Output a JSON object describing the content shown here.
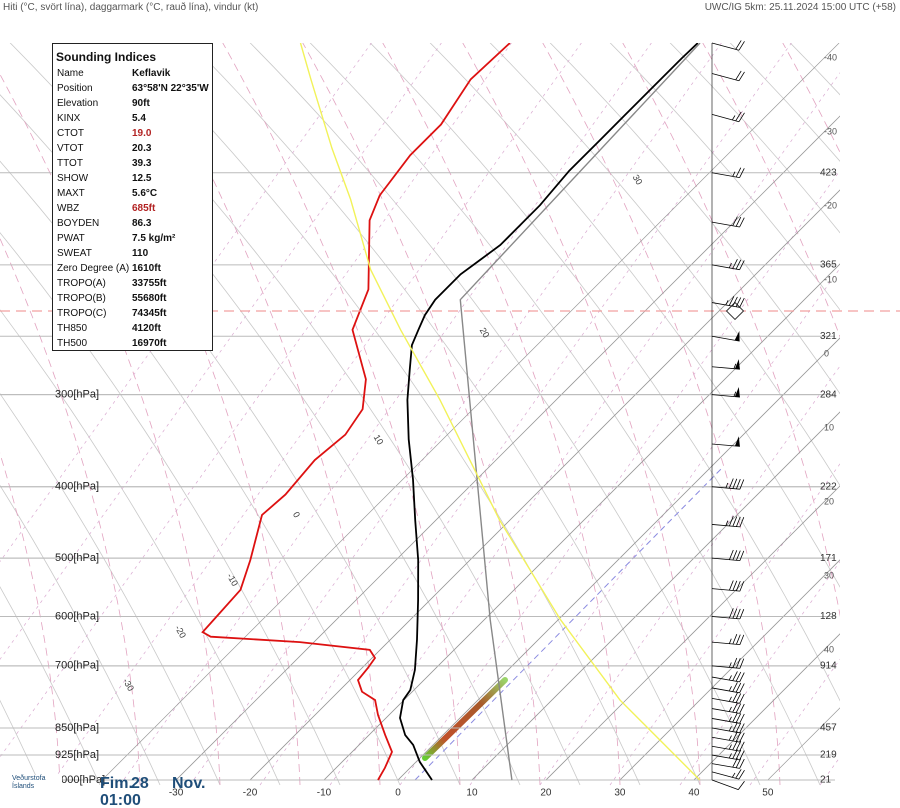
{
  "header": {
    "left": "Hiti (°C, svört lína), daggarmark (°C, rauð lína), vindur (kt)",
    "right": "UWC/IG 5km: 25.11.2024 15:00 UTC (+58)"
  },
  "indices": {
    "title": "Sounding Indices",
    "rows": [
      {
        "name": "Name",
        "value": "Keflavik"
      },
      {
        "name": "Position",
        "value": "63°58'N 22°35'W"
      },
      {
        "name": "Elevation",
        "value": "90ft"
      },
      {
        "name": "KINX",
        "value": "5.4"
      },
      {
        "name": "CTOT",
        "value": "19.0",
        "color": "#b22222"
      },
      {
        "name": "VTOT",
        "value": "20.3"
      },
      {
        "name": "TTOT",
        "value": "39.3"
      },
      {
        "name": "SHOW",
        "value": "12.5"
      },
      {
        "name": "MAXT",
        "value": "5.6°C"
      },
      {
        "name": "WBZ",
        "value": "685ft",
        "color": "#b22222"
      },
      {
        "name": "BOYDEN",
        "value": "86.3"
      },
      {
        "name": "PWAT",
        "value": "7.5 kg/m²"
      },
      {
        "name": "SWEAT",
        "value": "110"
      },
      {
        "name": "Zero Degree (A)",
        "value": "1610ft"
      },
      {
        "name": "TROPO(A)",
        "value": "33755ft"
      },
      {
        "name": "TROPO(B)",
        "value": "55680ft"
      },
      {
        "name": "TROPO(C)",
        "value": "74345ft"
      },
      {
        "name": "TH850",
        "value": "4120ft"
      },
      {
        "name": "TH500",
        "value": "16970ft"
      }
    ]
  },
  "footer": {
    "logo": "Veðurstofa Íslands",
    "day": "Fim.",
    "date": "28",
    "month": "Nov.",
    "time": "01:00"
  },
  "chart_data": {
    "type": "skewt",
    "ylim": [
      1000,
      100
    ],
    "log_y": true,
    "skew_angle": 45,
    "yticks": [
      {
        "value": 300,
        "label": "300[hPa]"
      },
      {
        "value": 400,
        "label": "400[hPa]"
      },
      {
        "value": 500,
        "label": "500[hPa]"
      },
      {
        "value": 600,
        "label": "600[hPa]"
      },
      {
        "value": 700,
        "label": "700[hPa]"
      },
      {
        "value": 850,
        "label": "850[hPa]"
      },
      {
        "value": 925,
        "label": "925[hPa]"
      },
      {
        "value": 1000,
        "label": "1000[hPa]"
      }
    ],
    "xlim": [
      -53.8,
      58.4
    ],
    "xticks": [
      -30,
      -20,
      -10,
      0,
      10,
      20,
      30,
      40,
      50
    ],
    "isotherm_labels": [
      -40,
      -30,
      -20,
      -10,
      0,
      10,
      20,
      30,
      40
    ],
    "adiabat_labels": [
      30,
      20,
      10,
      0,
      -10,
      -20,
      -30
    ],
    "height_labels": {
      "pressure": [
        150,
        200,
        250,
        300,
        400,
        500,
        600,
        700,
        850,
        925,
        1000
      ],
      "labels": [
        "423",
        "365",
        "321",
        "284",
        "222",
        "171",
        "128",
        "914",
        "457",
        "219",
        "21"
      ]
    },
    "tropopause": 231,
    "series": [
      {
        "color": "#000000",
        "pressure": [
          1000,
          945,
          896,
          869,
          824,
          779,
          755,
          709,
          645,
          570,
          503,
          444,
          391,
          345,
          305,
          278,
          257,
          245,
          234,
          223,
          216,
          206,
          197,
          188,
          179,
          166,
          149,
          135,
          125,
          114,
          105,
          100
        ],
        "values": [
          4.6,
          0.5,
          -2.7,
          -5.1,
          -8.1,
          -10.1,
          -10.5,
          -12.6,
          -16.4,
          -21.6,
          -27.0,
          -32.8,
          -38.6,
          -44.6,
          -50.1,
          -53.8,
          -56.9,
          -58.1,
          -59.2,
          -59.9,
          -59.9,
          -59.9,
          -59.2,
          -58.5,
          -58.5,
          -58.5,
          -59.2,
          -59.2,
          -59.2,
          -59.2,
          -59.2,
          -59.1
        ]
      },
      {
        "color": "#dd1111",
        "pressure": [
          1000,
          963,
          916,
          869,
          816,
          779,
          759,
          732,
          705,
          683,
          666,
          650,
          639,
          630,
          603,
          552,
          503,
          437,
          410,
          368,
          340,
          314,
          286,
          245,
          216,
          174,
          161,
          142,
          129,
          112,
          100
        ],
        "values": [
          -2.7,
          -3.4,
          -4.6,
          -7.8,
          -11.5,
          -13.9,
          -16.8,
          -18.9,
          -19.2,
          -19.6,
          -21.4,
          -31.9,
          -44.7,
          -46.4,
          -46.6,
          -47.0,
          -49.7,
          -54.2,
          -53.8,
          -54.5,
          -53.8,
          -54.9,
          -58.5,
          -67.0,
          -70.3,
          -79.5,
          -81.5,
          -82.8,
          -82.8,
          -84.9,
          -84.5
        ]
      },
      {
        "color": "#888888",
        "pressure": [
          1000,
          606,
          223,
          100
        ],
        "values": [
          15.4,
          -9.2,
          -56.5,
          -58.8
        ]
      },
      {
        "color": "#f2f25a",
        "pressure": [
          1000,
          779,
          606,
          444,
          305,
          245,
          203,
          163,
          139,
          112,
          100
        ],
        "values": [
          40.8,
          19.2,
          0.3,
          -21.4,
          -45.7,
          -60.5,
          -72.7,
          -84.9,
          -94.3,
          -106.5,
          -112.8
        ]
      }
    ],
    "wind": {
      "pressure": [
        1000,
        975,
        950,
        925,
        900,
        875,
        850,
        825,
        800,
        775,
        750,
        725,
        700,
        650,
        600,
        550,
        500,
        450,
        400,
        350,
        300,
        275,
        250,
        225,
        200,
        175,
        150,
        125,
        110,
        100
      ],
      "speed": [
        10,
        25,
        30,
        35,
        35,
        35,
        35,
        35,
        35,
        35,
        35,
        35,
        35,
        35,
        40,
        40,
        40,
        45,
        45,
        50,
        55,
        55,
        50,
        45,
        35,
        30,
        25,
        25,
        20,
        20
      ],
      "direction": [
        110,
        105,
        100,
        100,
        100,
        100,
        100,
        100,
        100,
        100,
        100,
        100,
        95,
        95,
        95,
        95,
        95,
        95,
        95,
        95,
        95,
        95,
        100,
        100,
        100,
        100,
        100,
        105,
        105,
        105
      ]
    }
  }
}
